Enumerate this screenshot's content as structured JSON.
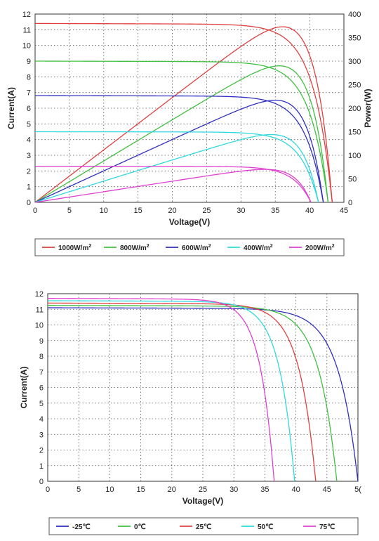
{
  "chart_data": [
    {
      "type": "line",
      "xlabel": "Voltage(V)",
      "ylabel": "Current(A)",
      "y2label": "Power(W)",
      "xlim": [
        0,
        45
      ],
      "ylim": [
        0,
        12
      ],
      "y2lim": [
        0,
        400
      ],
      "xticks": [
        "0",
        "5",
        "10",
        "15",
        "20",
        "25",
        "30",
        "35",
        "40",
        "45"
      ],
      "yticks": [
        "0",
        "1",
        "2",
        "3",
        "4",
        "5",
        "6",
        "7",
        "8",
        "9",
        "10",
        "11",
        "12"
      ],
      "y2ticks": [
        "0",
        "50",
        "100",
        "150",
        "200",
        "250",
        "300",
        "350",
        "400"
      ],
      "grid": true,
      "legend_position": "bottom",
      "series": [
        {
          "name": "1000W/m",
          "sup": "2",
          "color": "#e04040",
          "isc": 11.4,
          "voc": 43.3,
          "vmp": 35.0,
          "imp": 10.65,
          "pmax": 373
        },
        {
          "name": "800W/m",
          "sup": "2",
          "color": "#40c040",
          "isc": 9.0,
          "voc": 42.7,
          "vmp": 35.0,
          "imp": 8.3,
          "pmax": 290
        },
        {
          "name": "600W/m",
          "sup": "2",
          "color": "#3030c0",
          "isc": 6.8,
          "voc": 42.0,
          "vmp": 35.0,
          "imp": 6.2,
          "pmax": 217
        },
        {
          "name": "400W/m",
          "sup": "2",
          "color": "#30d8e0",
          "isc": 4.5,
          "voc": 41.3,
          "vmp": 35.0,
          "imp": 4.1,
          "pmax": 144
        },
        {
          "name": "200W/m",
          "sup": "2",
          "color": "#e040d0",
          "isc": 2.3,
          "voc": 40.2,
          "vmp": 34.0,
          "imp": 2.05,
          "pmax": 70
        }
      ]
    },
    {
      "type": "line",
      "xlabel": "Voltage(V)",
      "ylabel": "Current(A)",
      "xlim": [
        0,
        50
      ],
      "ylim": [
        0,
        12
      ],
      "xticks": [
        "0",
        "5",
        "10",
        "15",
        "20",
        "25",
        "30",
        "35",
        "40",
        "45",
        "5("
      ],
      "yticks": [
        "0",
        "1",
        "2",
        "3",
        "4",
        "5",
        "6",
        "7",
        "8",
        "9",
        "10",
        "11",
        "12"
      ],
      "grid": true,
      "legend_position": "bottom",
      "series": [
        {
          "name": "-25℃",
          "color": "#3030c0",
          "isc": 11.1,
          "voc": 50.0
        },
        {
          "name": "0℃",
          "color": "#40c040",
          "isc": 11.25,
          "voc": 46.6
        },
        {
          "name": "25℃",
          "color": "#e04040",
          "isc": 11.4,
          "voc": 43.2
        },
        {
          "name": "50℃",
          "color": "#30d8e0",
          "isc": 11.55,
          "voc": 39.8
        },
        {
          "name": "75℃",
          "color": "#e040d0",
          "isc": 11.7,
          "voc": 36.5
        }
      ]
    }
  ]
}
